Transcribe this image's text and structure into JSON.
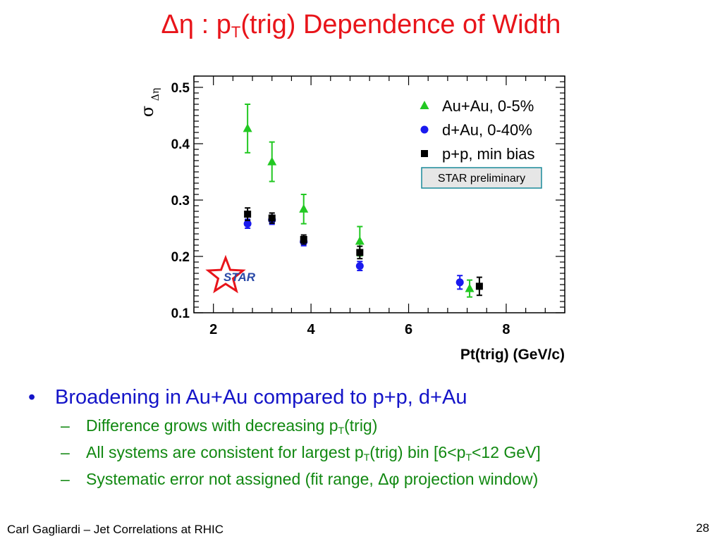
{
  "slide": {
    "title_main": "Δη : p",
    "title_sub": "T",
    "title_rest": "(trig) Dependence of Width",
    "bullet_main": "Broadening in Au+Au compared to p+p, d+Au",
    "sub1_a": "Difference grows with decreasing p",
    "sub1_sub": "T",
    "sub1_b": "(trig)",
    "sub2_a": "All systems are consistent for largest p",
    "sub2_sub": "T",
    "sub2_b": "(trig) bin  [6<p",
    "sub2_sub2": "T",
    "sub2_c": "<12 GeV]",
    "sub3": "Systematic error not assigned (fit range, Δφ projection window)",
    "footer": "Carl Gagliardi – Jet Correlations at RHIC",
    "page_number": "28",
    "bullet_glyph": "•",
    "dash_glyph": "–"
  },
  "chart_data": {
    "type": "scatter",
    "title": "",
    "xlabel": "Pt(trig) (GeV/c)",
    "ylabel": "σ",
    "ylabel_sub": "Δη",
    "xlim": [
      1.6,
      9.2
    ],
    "ylim": [
      0.1,
      0.52
    ],
    "xticks": [
      2,
      4,
      6,
      8
    ],
    "yticks": [
      0.1,
      0.2,
      0.3,
      0.4,
      0.5
    ],
    "grid": false,
    "legend_position": "top-right",
    "annotation": "STAR preliminary",
    "logo_text": "STAR",
    "series": [
      {
        "name": "Au+Au, 0-5%",
        "marker": "triangle",
        "color": "#22c822",
        "x": [
          2.7,
          3.2,
          3.85,
          5.0,
          7.25
        ],
        "y": [
          0.427,
          0.368,
          0.284,
          0.227,
          0.143
        ],
        "err": [
          0.043,
          0.035,
          0.026,
          0.026,
          0.015
        ]
      },
      {
        "name": "d+Au, 0-40%",
        "marker": "circle",
        "color": "#1a1aee",
        "x": [
          2.7,
          3.2,
          3.85,
          5.0,
          7.05
        ],
        "y": [
          0.258,
          0.265,
          0.226,
          0.183,
          0.154
        ],
        "err": [
          0.008,
          0.008,
          0.007,
          0.008,
          0.012
        ]
      },
      {
        "name": "p+p, min bias",
        "marker": "square",
        "color": "#000000",
        "x": [
          2.7,
          3.2,
          3.85,
          5.0,
          7.45
        ],
        "y": [
          0.275,
          0.268,
          0.23,
          0.207,
          0.147
        ],
        "err": [
          0.011,
          0.009,
          0.008,
          0.011,
          0.016
        ]
      }
    ]
  }
}
